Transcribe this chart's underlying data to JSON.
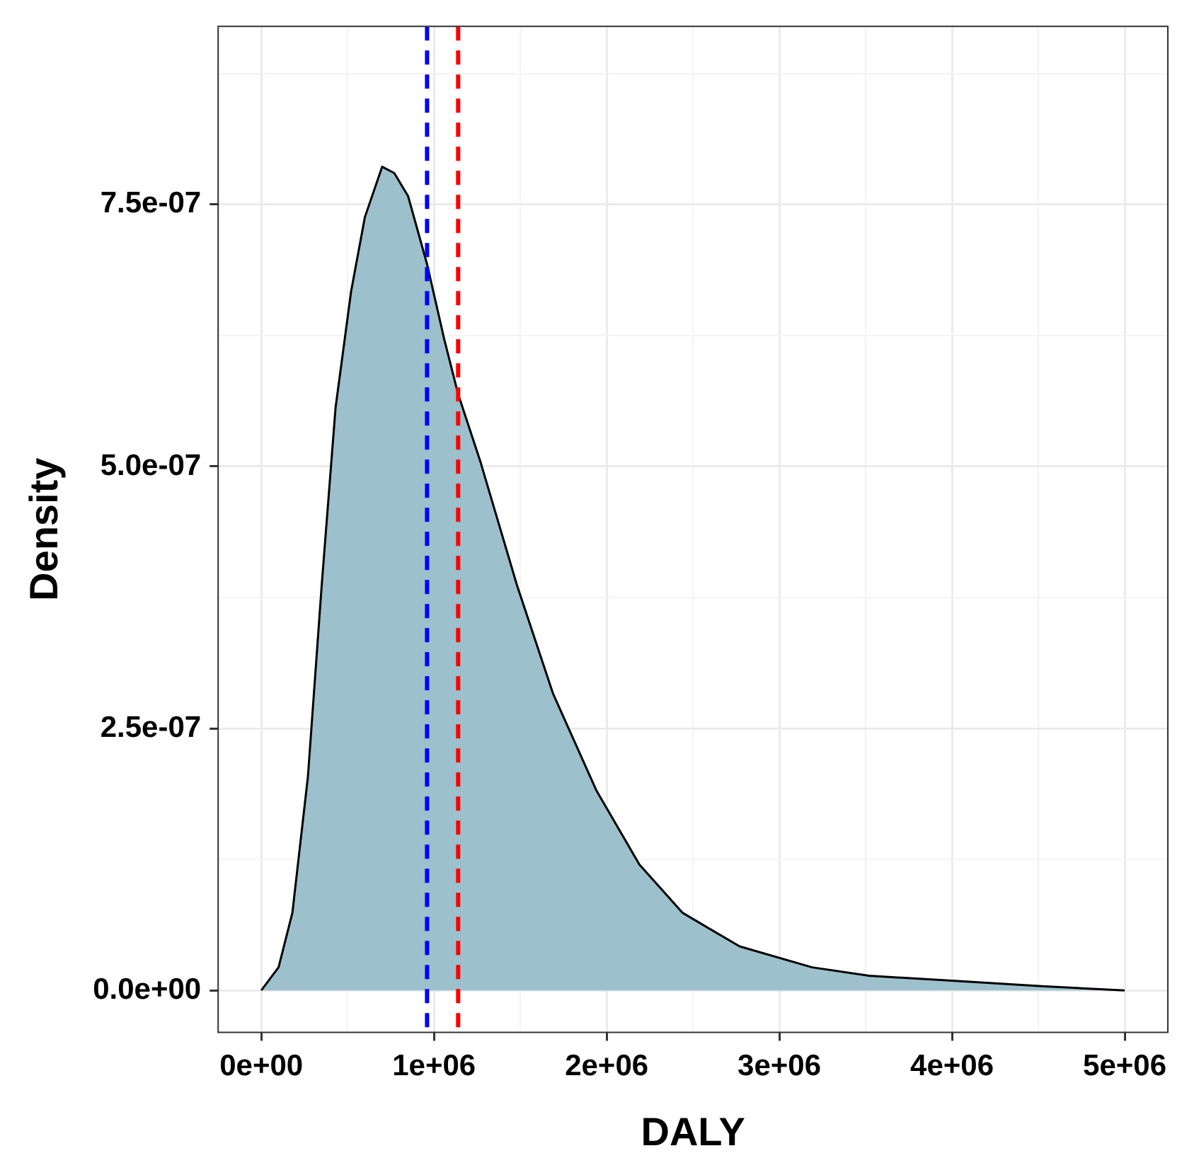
{
  "chart_data": {
    "type": "area",
    "xlabel": "DALY",
    "ylabel": "Density",
    "color": "#9dc0cd",
    "x": [
      0,
      100000,
      180000,
      270000,
      350000,
      430000,
      520000,
      600000,
      700000,
      770000,
      850000,
      960000,
      1060000,
      1140000,
      1270000,
      1480000,
      1690000,
      1940000,
      2190000,
      2440000,
      2770000,
      3190000,
      3520000,
      4020000,
      4520000,
      5000000
    ],
    "values": [
      0,
      2.2e-08,
      7.4e-08,
      2.04e-07,
      3.87e-07,
      5.56e-07,
      6.67e-07,
      7.38e-07,
      7.86e-07,
      7.8e-07,
      7.58e-07,
      6.93e-07,
      6.21e-07,
      5.69e-07,
      5.04e-07,
      3.87e-07,
      2.83e-07,
      1.91e-07,
      1.2e-07,
      7.4e-08,
      4.2e-08,
      2.2e-08,
      1.4e-08,
      9e-09,
      4e-09,
      0
    ],
    "xlim": [
      -250000,
      5250000
    ],
    "ylim": [
      -4e-08,
      9.2e-07
    ],
    "xticks": [
      {
        "value": 0,
        "label": "0e+00"
      },
      {
        "value": 500000,
        "label": null
      },
      {
        "value": 1000000,
        "label": "1e+06"
      },
      {
        "value": 1500000,
        "label": null
      },
      {
        "value": 2000000,
        "label": "2e+06"
      },
      {
        "value": 2500000,
        "label": null
      },
      {
        "value": 3000000,
        "label": "3e+06"
      },
      {
        "value": 3500000,
        "label": null
      },
      {
        "value": 4000000,
        "label": "4e+06"
      },
      {
        "value": 4500000,
        "label": null
      },
      {
        "value": 5000000,
        "label": "5e+06"
      }
    ],
    "yticks": [
      {
        "value": 0,
        "label": "0.0e+00"
      },
      {
        "value": 1.25e-07,
        "label": null
      },
      {
        "value": 2.5e-07,
        "label": "2.5e-07"
      },
      {
        "value": 3.75e-07,
        "label": null
      },
      {
        "value": 5e-07,
        "label": "5.0e-07"
      },
      {
        "value": 6.25e-07,
        "label": null
      },
      {
        "value": 7.5e-07,
        "label": "7.5e-07"
      },
      {
        "value": 8.75e-07,
        "label": null
      }
    ],
    "ref_lines": [
      {
        "axis": "x",
        "value": 960000,
        "color": "#0000ff",
        "line_style": "dashed"
      },
      {
        "axis": "x",
        "value": 1140000,
        "color": "#ff0000",
        "line_style": "dashed"
      }
    ],
    "grid": true,
    "legend": false
  }
}
